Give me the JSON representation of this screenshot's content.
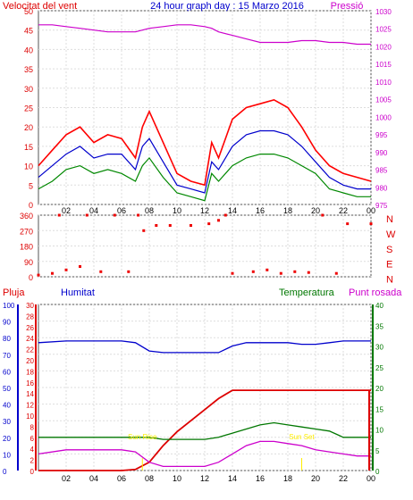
{
  "colors": {
    "wind_gust": "#ff0000",
    "wind_avg": "#0000cc",
    "wind_min": "#008800",
    "pressure": "#cc00cc",
    "direction": "#ee0000",
    "rain": "#dd0000",
    "humidity": "#0000cc",
    "temperature": "#007700",
    "dewpoint": "#cc00cc",
    "annotation": "#ffee00"
  },
  "chart_data": [
    {
      "type": "line",
      "title": "24 hour graph day : 15 Marzo 2016",
      "ylabel_left": "Velocitat del vent",
      "ylabel_right": "Pressió",
      "x_ticks": [
        "02",
        "04",
        "06",
        "08",
        "10",
        "12",
        "14",
        "16",
        "18",
        "20",
        "22",
        "00"
      ],
      "y_left_ticks": [
        "0",
        "5",
        "10",
        "15",
        "20",
        "25",
        "30",
        "35",
        "40",
        "45",
        "50"
      ],
      "y_right_ticks": [
        "975",
        "980",
        "985",
        "990",
        "995",
        "1000",
        "1005",
        "1010",
        "1015",
        "1020",
        "1025",
        "1030"
      ],
      "ylim_left": [
        0,
        50
      ],
      "ylim_right": [
        975,
        1030
      ],
      "x_hours": [
        0,
        1,
        2,
        3,
        4,
        5,
        6,
        7,
        7.5,
        8,
        9,
        10,
        11,
        12,
        12.5,
        13,
        14,
        15,
        16,
        17,
        18,
        19,
        20,
        21,
        22,
        23,
        24
      ],
      "series": [
        {
          "key": "gust",
          "axis": "left",
          "values": [
            10,
            14,
            18,
            20,
            16,
            18,
            17,
            12,
            20,
            24,
            16,
            8,
            6,
            5,
            16,
            12,
            22,
            25,
            26,
            27,
            25,
            20,
            14,
            10,
            8,
            7,
            6
          ]
        },
        {
          "key": "avg",
          "axis": "left",
          "values": [
            7,
            10,
            13,
            15,
            12,
            13,
            13,
            9,
            15,
            17,
            11,
            5,
            4,
            3,
            11,
            9,
            15,
            18,
            19,
            19,
            18,
            15,
            11,
            7,
            5,
            4,
            4
          ]
        },
        {
          "key": "min",
          "axis": "left",
          "values": [
            4,
            6,
            9,
            10,
            8,
            9,
            8,
            6,
            10,
            12,
            7,
            3,
            2,
            1,
            8,
            6,
            10,
            12,
            13,
            13,
            12,
            10,
            8,
            4,
            3,
            2,
            2
          ]
        },
        {
          "key": "pressure",
          "axis": "right",
          "values": [
            1026,
            1026,
            1025.5,
            1025,
            1024.5,
            1024,
            1024,
            1024,
            1024.5,
            1025,
            1025.5,
            1026,
            1026,
            1025.5,
            1025,
            1024,
            1023,
            1022,
            1021,
            1021,
            1021,
            1021.5,
            1021.5,
            1021,
            1021,
            1020.5,
            1020.5
          ]
        }
      ]
    },
    {
      "type": "scatter",
      "ylabel_right_letters": [
        "N",
        "W",
        "S",
        "E",
        "N"
      ],
      "y_ticks": [
        "0",
        "90",
        "180",
        "270",
        "360"
      ],
      "ylim": [
        0,
        360
      ],
      "points": [
        {
          "x": 0.0,
          "y": 10
        },
        {
          "x": 1.0,
          "y": 20
        },
        {
          "x": 1.5,
          "y": 360
        },
        {
          "x": 2.0,
          "y": 40
        },
        {
          "x": 3.0,
          "y": 60
        },
        {
          "x": 3.5,
          "y": 360
        },
        {
          "x": 4.5,
          "y": 30
        },
        {
          "x": 5.5,
          "y": 360
        },
        {
          "x": 6.5,
          "y": 30
        },
        {
          "x": 7.2,
          "y": 360
        },
        {
          "x": 7.6,
          "y": 270
        },
        {
          "x": 8.5,
          "y": 300
        },
        {
          "x": 9.5,
          "y": 300
        },
        {
          "x": 11.0,
          "y": 300
        },
        {
          "x": 12.3,
          "y": 310
        },
        {
          "x": 13.0,
          "y": 330
        },
        {
          "x": 13.5,
          "y": 360
        },
        {
          "x": 14.0,
          "y": 20
        },
        {
          "x": 15.5,
          "y": 30
        },
        {
          "x": 16.5,
          "y": 40
        },
        {
          "x": 17.5,
          "y": 20
        },
        {
          "x": 18.5,
          "y": 30
        },
        {
          "x": 19.5,
          "y": 25
        },
        {
          "x": 20.5,
          "y": 360
        },
        {
          "x": 21.5,
          "y": 20
        },
        {
          "x": 22.3,
          "y": 310
        },
        {
          "x": 24.0,
          "y": 310
        }
      ]
    },
    {
      "type": "line",
      "labels": {
        "rain": "Pluja",
        "humidity": "Humitat",
        "temperature": "Temperatura",
        "dewpoint": "Punt rosada"
      },
      "y_humidity_ticks": [
        "0",
        "10",
        "20",
        "30",
        "40",
        "50",
        "60",
        "70",
        "80",
        "90",
        "100"
      ],
      "y_rain_ticks": [
        "0",
        "2",
        "4",
        "6",
        "8",
        "10",
        "12",
        "14",
        "16",
        "18",
        "20",
        "22",
        "24",
        "26",
        "28",
        "30"
      ],
      "y_temp_ticks": [
        "0",
        "5",
        "10",
        "15",
        "20",
        "25",
        "30",
        "35",
        "40"
      ],
      "x_ticks": [
        "02",
        "04",
        "06",
        "08",
        "10",
        "12",
        "14",
        "16",
        "18",
        "20",
        "22",
        "00"
      ],
      "annotations": [
        {
          "x": 7.5,
          "text": "Sun Rise"
        },
        {
          "x": 19.0,
          "text": "Sun Set"
        }
      ],
      "x_hours": [
        0,
        2,
        4,
        6,
        7,
        8,
        9,
        10,
        11,
        12,
        13,
        14,
        15,
        16,
        17,
        18,
        19,
        20,
        21,
        22,
        23,
        24
      ],
      "series": [
        {
          "key": "rain",
          "axis": "rain",
          "values": [
            0,
            0,
            0,
            0,
            0.2,
            1.5,
            4.5,
            7,
            9,
            11,
            13,
            14.5,
            14.5,
            14.5,
            14.5,
            14.5,
            14.5,
            14.5,
            14.5,
            14.5,
            14.5,
            14.5
          ]
        },
        {
          "key": "humidity",
          "axis": "humidity",
          "values": [
            77,
            78,
            78,
            78,
            77,
            72,
            71,
            71,
            71,
            71,
            71,
            75,
            77,
            77,
            77,
            77,
            76,
            76,
            77,
            78,
            78,
            78
          ]
        },
        {
          "key": "temperature",
          "axis": "temp",
          "values": [
            8,
            8,
            8,
            8,
            8,
            8,
            7.5,
            7.5,
            7.5,
            7.5,
            8,
            9,
            10,
            11,
            11.5,
            11,
            10.5,
            10,
            9.5,
            8,
            8,
            8
          ]
        },
        {
          "key": "dewpoint",
          "axis": "temp",
          "values": [
            4,
            5,
            5,
            5,
            4.5,
            2,
            1,
            1,
            1,
            1,
            2,
            4,
            6,
            7,
            7,
            6.5,
            6,
            5,
            4.5,
            4,
            3.5,
            3.5
          ]
        }
      ]
    }
  ]
}
